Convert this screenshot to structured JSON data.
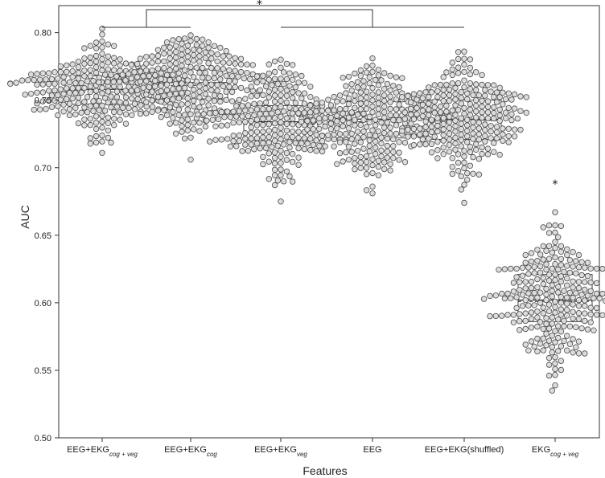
{
  "chart_data": {
    "type": "beeswarm-boxplot",
    "title": "",
    "xlabel": "Features",
    "ylabel": "AUC",
    "ylim": [
      0.5,
      0.82
    ],
    "yticks": [
      "0.50",
      "0.55",
      "0.60",
      "0.65",
      "0.70",
      "0.75",
      "0.80"
    ],
    "grid": false,
    "categories": [
      {
        "base": "EEG+EKG",
        "sub": "cog + veg"
      },
      {
        "base": "EEG+EKG",
        "sub": "cog"
      },
      {
        "base": "EEG+EKG",
        "sub": "veg"
      },
      {
        "base": "EEG",
        "sub": ""
      },
      {
        "base": "EEG+EKG(shuffled)",
        "sub": ""
      },
      {
        "base": "EKG",
        "sub": "cog + veg"
      }
    ],
    "boxes": [
      {
        "q1": 0.747,
        "median": 0.758,
        "mean": 0.756,
        "q3": 0.768,
        "min": 0.711,
        "max": 0.803
      },
      {
        "q1": 0.751,
        "median": 0.763,
        "mean": 0.761,
        "q3": 0.773,
        "min": 0.706,
        "max": 0.798
      },
      {
        "q1": 0.72,
        "median": 0.734,
        "mean": 0.732,
        "q3": 0.746,
        "min": 0.675,
        "max": 0.78
      },
      {
        "q1": 0.722,
        "median": 0.736,
        "mean": 0.734,
        "q3": 0.749,
        "min": 0.681,
        "max": 0.781
      },
      {
        "q1": 0.721,
        "median": 0.736,
        "mean": 0.735,
        "q3": 0.75,
        "min": 0.674,
        "max": 0.786
      },
      {
        "q1": 0.586,
        "median": 0.602,
        "mean": 0.601,
        "q3": 0.621,
        "min": 0.535,
        "max": 0.667
      }
    ],
    "annotations": [
      {
        "text": "*",
        "type": "bracket",
        "left_group": [
          0,
          1
        ],
        "right_group": [
          2,
          3,
          4
        ],
        "y": 0.817
      },
      {
        "text": "*",
        "type": "point",
        "category": 5,
        "y": 0.688
      }
    ]
  }
}
